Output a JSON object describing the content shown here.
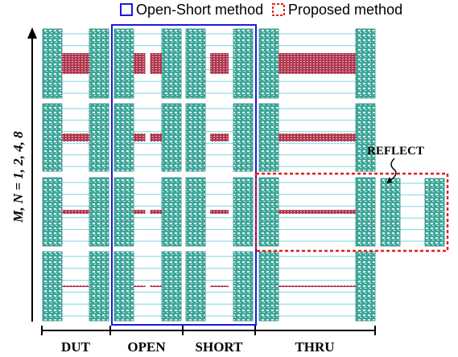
{
  "legend": {
    "items": [
      {
        "label": "Open-Short method"
      },
      {
        "label": "Proposed method"
      }
    ]
  },
  "annotation": "REFLECT",
  "axis_label": "M, N = 1, 2, 4, 8",
  "columns": [
    "DUT",
    "OPEN",
    "SHORT",
    "THRU"
  ]
}
